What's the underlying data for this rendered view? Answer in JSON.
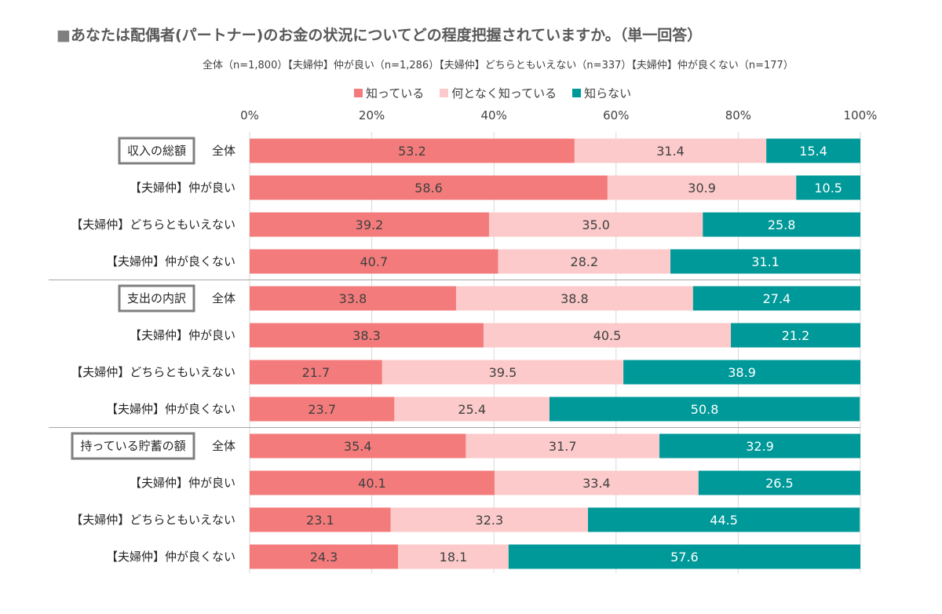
{
  "title": "あなたは配偶者(パートナー)のお金の状況についてどの程度把握されていますか。（単一回答）",
  "title_marker": "■",
  "subtitle": "全体（n=1,800）【夫婦仲】仲が良い（n=1,286）【夫婦仲】どちらともいえない（n=337）【夫婦仲】仲が良くない（n=177）",
  "colors": {
    "know": "#F47B7B",
    "somewhat": "#FCCACA",
    "dont": "#009999",
    "grid": "#d9d9d9",
    "frame": "#7f7f7f"
  },
  "chart_data": {
    "type": "bar",
    "orientation": "horizontal",
    "stacked": true,
    "percent_stacked": true,
    "xlim": [
      0,
      100
    ],
    "x_ticks": [
      "0%",
      "20%",
      "40%",
      "60%",
      "80%",
      "100%"
    ],
    "legend_position": "top",
    "series": [
      {
        "name": "知っている"
      },
      {
        "name": "何となく知っている"
      },
      {
        "name": "知らない"
      }
    ],
    "groups": [
      {
        "name": "収入の総額",
        "rows": [
          {
            "label": "全体",
            "values": [
              53.2,
              31.4,
              15.4
            ]
          },
          {
            "label": "【夫婦仲】仲が良い",
            "values": [
              58.6,
              30.9,
              10.5
            ]
          },
          {
            "label": "【夫婦仲】どちらともいえない",
            "values": [
              39.2,
              35.0,
              25.8
            ]
          },
          {
            "label": "【夫婦仲】仲が良くない",
            "values": [
              40.7,
              28.2,
              31.1
            ]
          }
        ]
      },
      {
        "name": "支出の内訳",
        "rows": [
          {
            "label": "全体",
            "values": [
              33.8,
              38.8,
              27.4
            ]
          },
          {
            "label": "【夫婦仲】仲が良い",
            "values": [
              38.3,
              40.5,
              21.2
            ]
          },
          {
            "label": "【夫婦仲】どちらともいえない",
            "values": [
              21.7,
              39.5,
              38.9
            ]
          },
          {
            "label": "【夫婦仲】仲が良くない",
            "values": [
              23.7,
              25.4,
              50.8
            ]
          }
        ]
      },
      {
        "name": "持っている貯蓄の額",
        "rows": [
          {
            "label": "全体",
            "values": [
              35.4,
              31.7,
              32.9
            ]
          },
          {
            "label": "【夫婦仲】仲が良い",
            "values": [
              40.1,
              33.4,
              26.5
            ]
          },
          {
            "label": "【夫婦仲】どちらともいえない",
            "values": [
              23.1,
              32.3,
              44.5
            ]
          },
          {
            "label": "【夫婦仲】仲が良くない",
            "values": [
              24.3,
              18.1,
              57.6
            ]
          }
        ]
      }
    ]
  }
}
